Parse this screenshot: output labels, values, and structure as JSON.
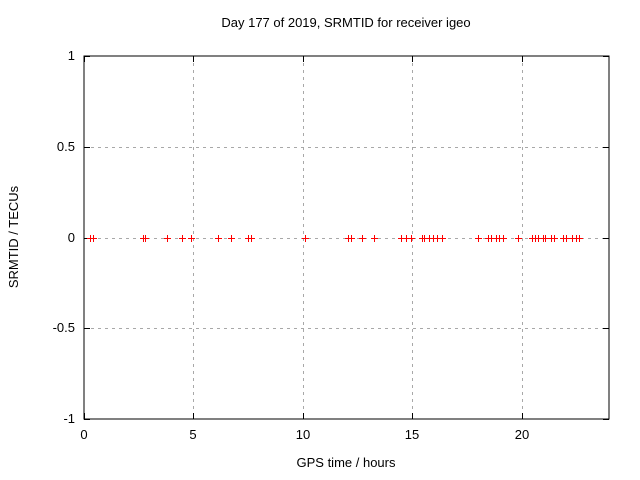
{
  "chart_data": {
    "type": "scatter",
    "title": "Day 177 of 2019, SRMTID for receiver igeo",
    "xlabel": "GPS time / hours",
    "ylabel": "SRMTID / TECUs",
    "xlim": [
      0,
      24
    ],
    "ylim": [
      -1,
      1
    ],
    "xticks": [
      0,
      5,
      10,
      15,
      20
    ],
    "xtick_labels": [
      "0",
      "5",
      "10",
      "15",
      "20"
    ],
    "yticks": [
      -1,
      -0.5,
      0,
      0.5,
      1
    ],
    "ytick_labels": [
      "-1",
      "-0.5",
      "0",
      "0.5",
      "1"
    ],
    "grid": true,
    "grid_xticks": [
      5,
      10,
      15,
      20
    ],
    "grid_yticks": [
      -0.5,
      0,
      0.5
    ],
    "legend_position": "none",
    "marker_shape": "plus",
    "marker_color": "#ff0000",
    "grid_color": "#a8a8a8",
    "border_color": "#000000",
    "series": [
      {
        "name": "SRMTID",
        "x": [
          0.28,
          0.41,
          2.68,
          2.78,
          3.8,
          4.46,
          4.88,
          6.12,
          6.7,
          7.5,
          7.65,
          10.1,
          12.05,
          12.2,
          12.73,
          13.26,
          14.47,
          14.7,
          14.93,
          15.46,
          15.56,
          15.76,
          15.96,
          16.14,
          16.35,
          18.02,
          18.48,
          18.6,
          18.82,
          18.98,
          19.17,
          19.85,
          20.5,
          20.6,
          20.77,
          21.0,
          21.08,
          21.33,
          21.5,
          21.88,
          22.03,
          22.33,
          22.48,
          22.63
        ],
        "y": [
          0,
          0,
          0,
          0,
          0,
          0,
          0,
          0,
          0,
          0,
          0,
          0,
          0,
          0,
          0,
          0,
          0,
          0,
          0,
          0,
          0,
          0,
          0,
          0,
          0,
          0,
          0,
          0,
          0,
          0,
          0,
          0,
          0,
          0,
          0,
          0,
          0,
          0,
          0,
          0,
          0,
          0,
          0,
          0
        ]
      }
    ]
  }
}
